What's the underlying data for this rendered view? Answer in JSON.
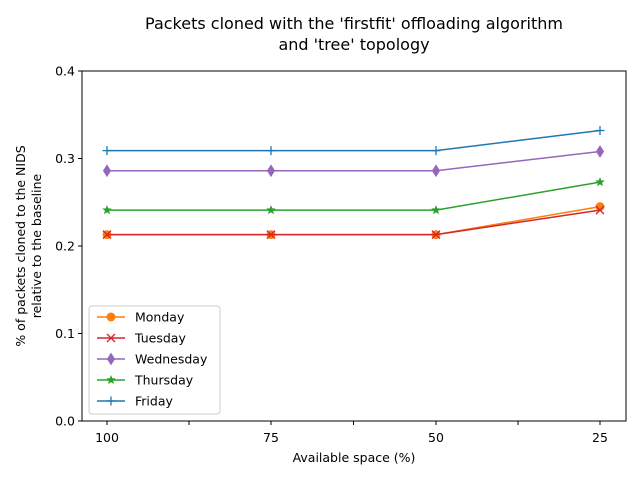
{
  "chart_data": {
    "type": "line",
    "title_lines": [
      "Packets cloned with the 'firstfit' offloading algorithm",
      "and 'tree' topology"
    ],
    "xlabel": "Available space (%)",
    "ylabel_lines": [
      "% of packets cloned to the NIDS",
      "relative to the baseline"
    ],
    "categories": [
      "100",
      "75",
      "50",
      "25"
    ],
    "ylim": [
      0,
      0.4
    ],
    "yticks": [
      "0.0",
      "0.1",
      "0.2",
      "0.3",
      "0.4"
    ],
    "grid": false,
    "legend_position": "lower-left",
    "series": [
      {
        "name": "Monday",
        "color": "#ff7f0e",
        "marker": "circle",
        "values": [
          0.213,
          0.213,
          0.213,
          0.245
        ]
      },
      {
        "name": "Tuesday",
        "color": "#d62728",
        "marker": "x",
        "values": [
          0.213,
          0.213,
          0.213,
          0.241
        ]
      },
      {
        "name": "Wednesday",
        "color": "#9467bd",
        "marker": "thin-diamond",
        "values": [
          0.286,
          0.286,
          0.286,
          0.308
        ]
      },
      {
        "name": "Thursday",
        "color": "#2ca02c",
        "marker": "star",
        "values": [
          0.241,
          0.241,
          0.241,
          0.273
        ]
      },
      {
        "name": "Friday",
        "color": "#1f77b4",
        "marker": "plus",
        "values": [
          0.309,
          0.309,
          0.309,
          0.332
        ]
      }
    ]
  }
}
